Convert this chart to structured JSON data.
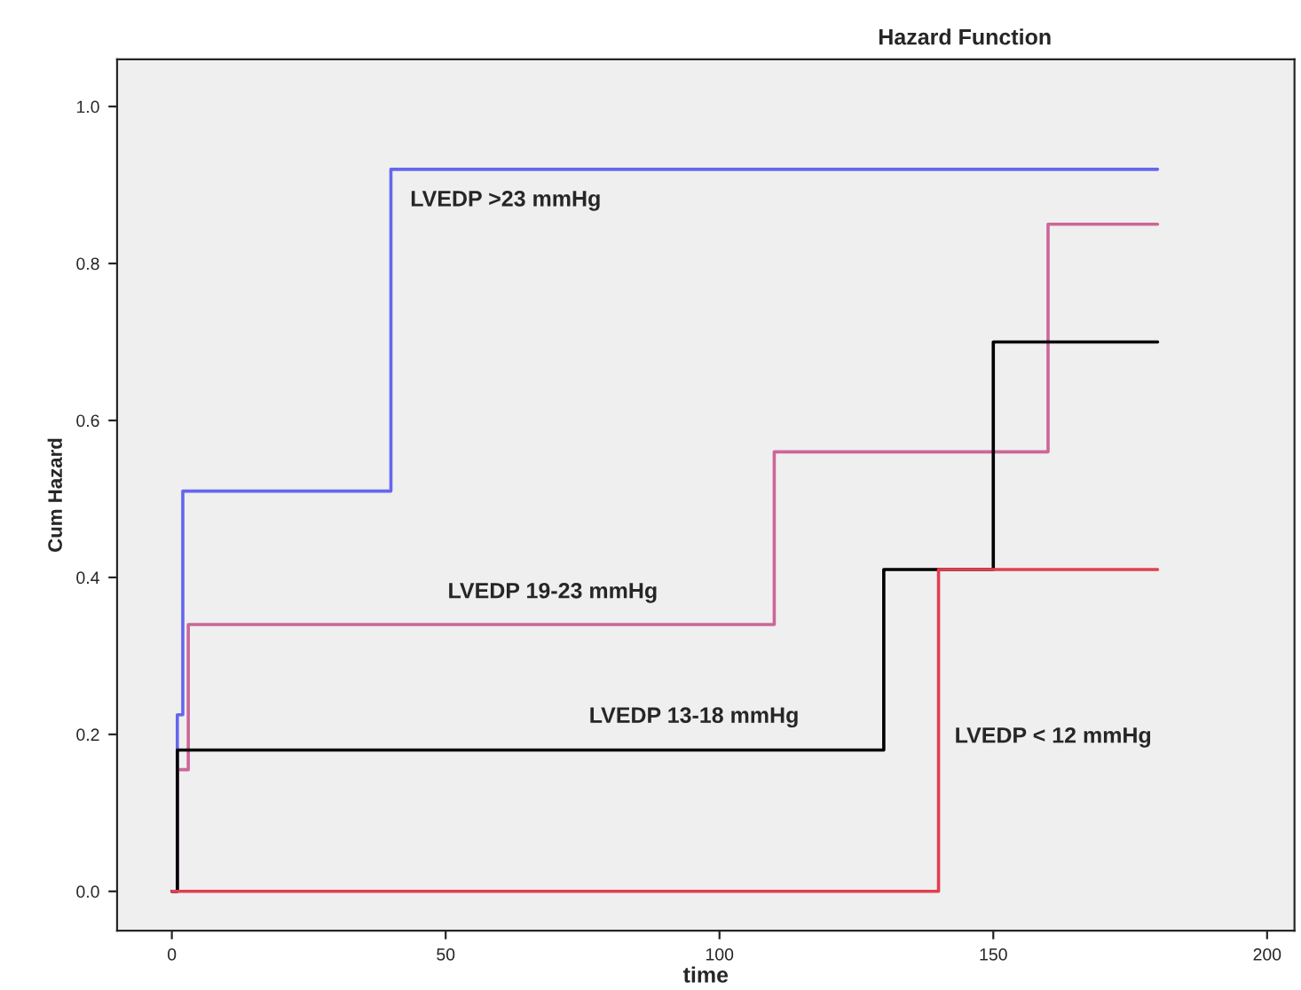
{
  "chart_data": {
    "type": "step",
    "title": "Hazard Function",
    "xlabel": "time",
    "ylabel": "Cum Hazard",
    "series": [
      {
        "name": "LVEDP >23 mmHg",
        "color": "#6666ee",
        "x": [
          0,
          1,
          2,
          40,
          180
        ],
        "values": [
          0,
          0.225,
          0.51,
          0.92,
          0.92
        ]
      },
      {
        "name": "LVEDP 19-23 mmHg",
        "color": "#cc6699",
        "x": [
          0,
          1,
          3,
          110,
          160,
          180
        ],
        "values": [
          0,
          0.155,
          0.34,
          0.56,
          0.85,
          0.85
        ]
      },
      {
        "name": "LVEDP 13-18 mmHg",
        "color": "#000000",
        "x": [
          0,
          1,
          130,
          150,
          180
        ],
        "values": [
          0,
          0.18,
          0.41,
          0.7,
          0.7
        ]
      },
      {
        "name": "LVEDP < 12 mmHg",
        "color": "#e04050",
        "x": [
          0,
          140,
          180
        ],
        "values": [
          0,
          0.41,
          0.41
        ]
      }
    ],
    "xlim": [
      -10,
      205
    ],
    "xticks": [
      0,
      50,
      100,
      150,
      200
    ],
    "ylim": [
      -0.05,
      1.06
    ],
    "yticks": [
      {
        "value": 0,
        "label": "0.0"
      },
      {
        "value": 0.2,
        "label": "0.2"
      },
      {
        "value": 0.4,
        "label": "0.4"
      },
      {
        "value": 0.6,
        "label": "0.6"
      },
      {
        "value": 0.8,
        "label": "0.8"
      },
      {
        "value": 1.0,
        "label": "1.0"
      }
    ],
    "grid": false,
    "legend": false
  }
}
